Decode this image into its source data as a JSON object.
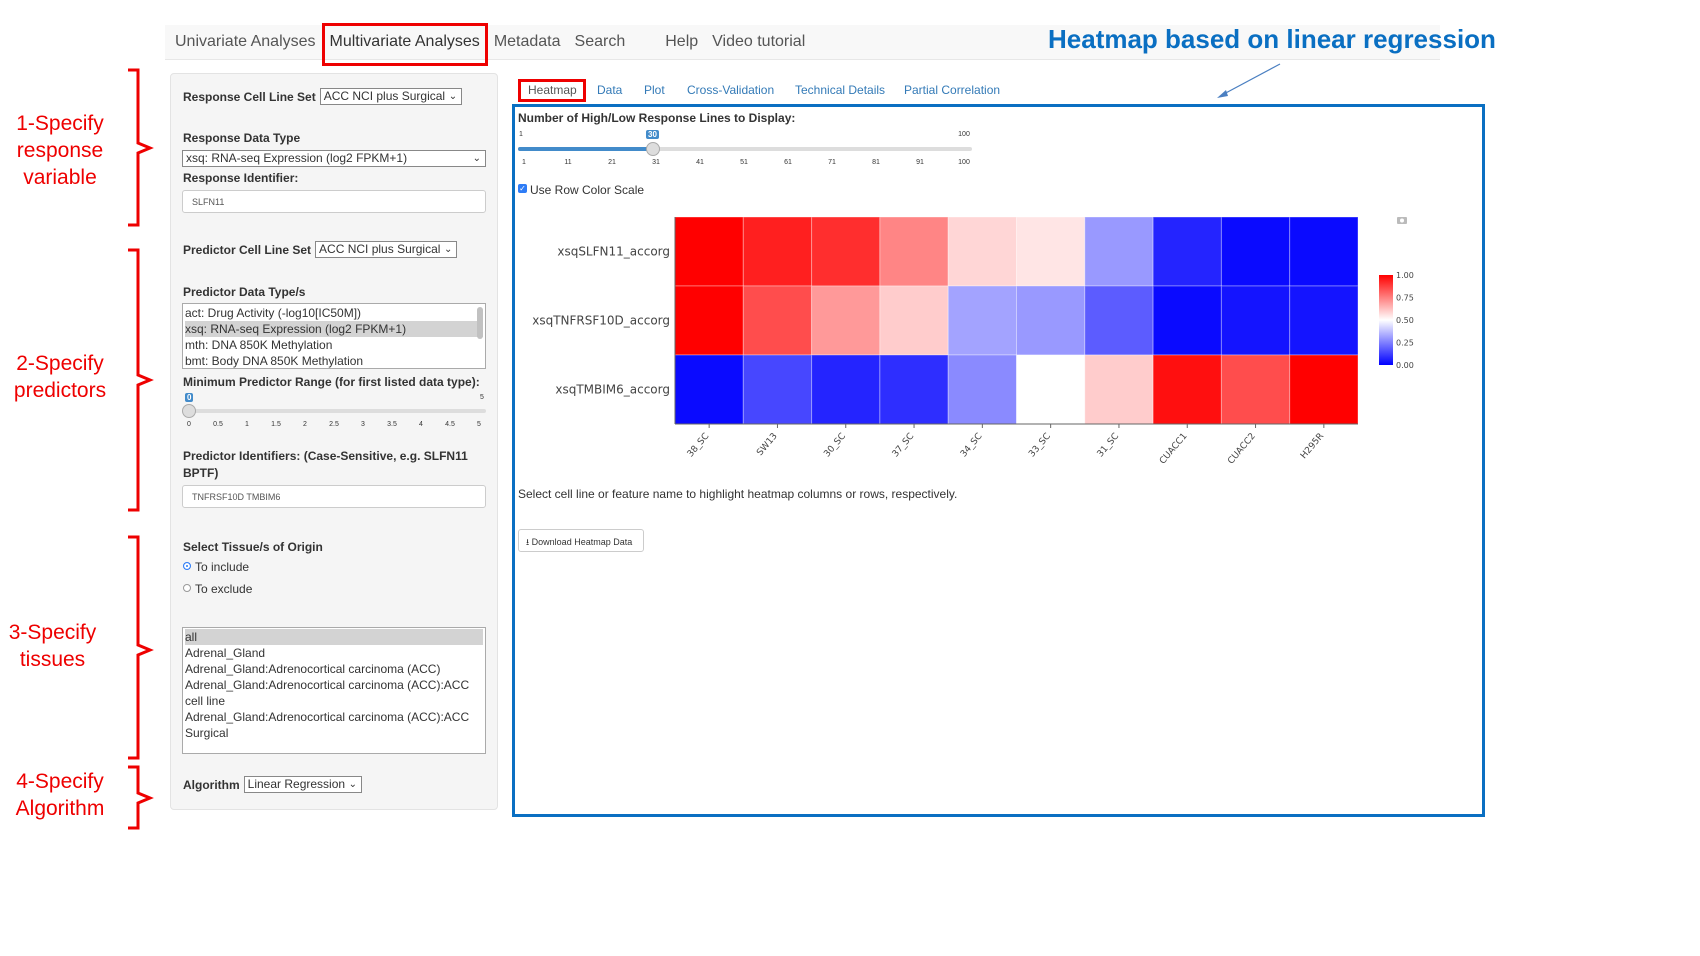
{
  "nav": {
    "items": [
      "Univariate Analyses",
      "Multivariate Analyses",
      "Metadata",
      "Search",
      "Help",
      "Video tutorial"
    ],
    "active": "Multivariate Analyses"
  },
  "annotation_title": "Heatmap based on linear regression",
  "annotations": [
    "1-Specify response variable",
    "2-Specify predictors",
    "3-Specify tissues",
    "4-Specify Algorithm"
  ],
  "sidebar": {
    "response_cell_line_set": {
      "label": "Response Cell Line Set",
      "value": "ACC NCI plus Surgical"
    },
    "response_data_type": {
      "label": "Response Data Type",
      "value": "xsq: RNA-seq Expression (log2 FPKM+1)"
    },
    "response_identifier": {
      "label": "Response Identifier:",
      "value": "SLFN11"
    },
    "predictor_cell_line_set": {
      "label": "Predictor Cell Line Set",
      "value": "ACC NCI plus Surgical"
    },
    "predictor_data_types": {
      "label": "Predictor Data Type/s",
      "options": [
        "act: Drug Activity (-log10[IC50M])",
        "xsq: RNA-seq Expression (log2 FPKM+1)",
        "mth: DNA 850K Methylation",
        "bmt: Body DNA 850K Methylation"
      ],
      "selected": "xsq: RNA-seq Expression (log2 FPKM+1)"
    },
    "min_predictor_range": {
      "label": "Minimum Predictor Range (for first listed data type):",
      "value": "0",
      "min": "0",
      "max": "5",
      "ticks": [
        "0",
        "0.5",
        "1",
        "1.5",
        "2",
        "2.5",
        "3",
        "3.5",
        "4",
        "4.5",
        "5"
      ]
    },
    "predictor_identifiers": {
      "label": "Predictor Identifiers: (Case-Sensitive, e.g. SLFN11 BPTF)",
      "value": "TNFRSF10D TMBIM6"
    },
    "tissue": {
      "label": "Select Tissue/s of Origin",
      "include": "To include",
      "exclude": "To exclude",
      "selected_mode": "include",
      "options": [
        "all",
        "Adrenal_Gland",
        "Adrenal_Gland:Adrenocortical carcinoma (ACC)",
        "Adrenal_Gland:Adrenocortical carcinoma (ACC):ACC cell line",
        "Adrenal_Gland:Adrenocortical carcinoma (ACC):ACC Surgical"
      ],
      "selected": "all"
    },
    "algorithm": {
      "label": "Algorithm",
      "value": "Linear Regression"
    }
  },
  "tabs": [
    "Heatmap",
    "Data",
    "Plot",
    "Cross-Validation",
    "Technical Details",
    "Partial Correlation"
  ],
  "active_tab": "Heatmap",
  "main": {
    "lines_slider": {
      "label": "Number of High/Low Response Lines to Display:",
      "value": "30",
      "min": "1",
      "max": "100",
      "ticks": [
        "1",
        "11",
        "21",
        "31",
        "41",
        "51",
        "61",
        "71",
        "81",
        "91",
        "100"
      ]
    },
    "use_row_color_scale": {
      "label": "Use Row Color Scale",
      "checked": true
    },
    "hint": "Select cell line or feature name to highlight heatmap columns or rows, respectively.",
    "download_label": "Download Heatmap Data"
  },
  "chart_data": {
    "type": "heatmap",
    "rows": [
      "xsqSLFN11_accorg",
      "xsqTNFRSF10D_accorg",
      "xsqTMBIM6_accorg"
    ],
    "columns": [
      "38_SC",
      "SW13",
      "30_SC",
      "37_SC",
      "34_SC",
      "33_SC",
      "31_SC",
      "CUACC1",
      "CUACC2",
      "H295R"
    ],
    "values": [
      [
        1.0,
        0.94,
        0.91,
        0.74,
        0.58,
        0.55,
        0.3,
        0.07,
        0.02,
        0.02
      ],
      [
        1.0,
        0.85,
        0.7,
        0.6,
        0.32,
        0.3,
        0.18,
        0.02,
        0.04,
        0.04
      ],
      [
        0.02,
        0.14,
        0.07,
        0.09,
        0.27,
        0.5,
        0.6,
        0.97,
        0.85,
        1.0
      ]
    ],
    "colorscale": {
      "low": "#0000ff",
      "mid": "#ffffff",
      "high": "#ff0000",
      "range": [
        0,
        1
      ],
      "ticks": [
        "1.00",
        "0.75",
        "0.50",
        "0.25",
        "0.00"
      ]
    }
  }
}
